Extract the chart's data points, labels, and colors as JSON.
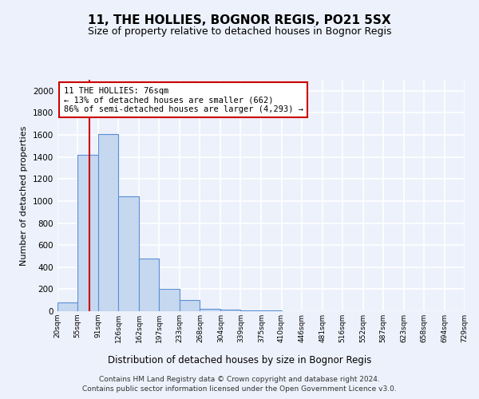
{
  "title": "11, THE HOLLIES, BOGNOR REGIS, PO21 5SX",
  "subtitle": "Size of property relative to detached houses in Bognor Regis",
  "xlabel": "Distribution of detached houses by size in Bognor Regis",
  "ylabel": "Number of detached properties",
  "bin_edges": [
    20,
    55,
    91,
    126,
    162,
    197,
    233,
    268,
    304,
    339,
    375,
    410,
    446,
    481,
    516,
    552,
    587,
    623,
    658,
    694,
    729
  ],
  "bar_heights": [
    80,
    1420,
    1610,
    1040,
    480,
    200,
    100,
    25,
    15,
    10,
    5,
    3,
    2,
    1,
    1,
    0,
    0,
    0,
    0,
    0
  ],
  "bar_color": "#c5d8f0",
  "bar_edge_color": "#5b8fd4",
  "property_line_x": 76,
  "property_line_color": "#cc0000",
  "annotation_text": "11 THE HOLLIES: 76sqm\n← 13% of detached houses are smaller (662)\n86% of semi-detached houses are larger (4,293) →",
  "annotation_box_color": "#ffffff",
  "annotation_box_edge_color": "#cc0000",
  "ylim": [
    0,
    2100
  ],
  "yticks": [
    0,
    200,
    400,
    600,
    800,
    1000,
    1200,
    1400,
    1600,
    1800,
    2000
  ],
  "footer_line1": "Contains HM Land Registry data © Crown copyright and database right 2024.",
  "footer_line2": "Contains public sector information licensed under the Open Government Licence v3.0.",
  "bg_color": "#edf1fb",
  "plot_bg_color": "#edf1fb",
  "grid_color": "#ffffff"
}
